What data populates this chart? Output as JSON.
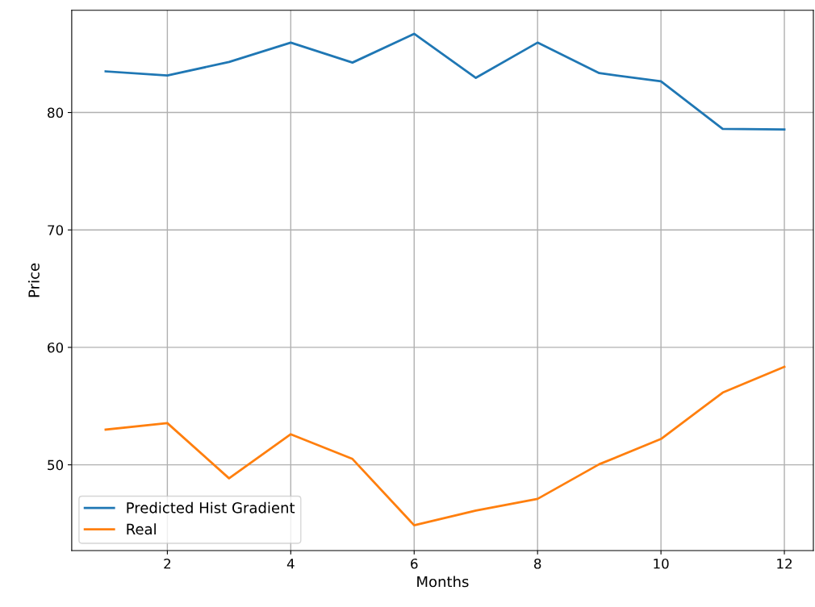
{
  "chart_data": {
    "type": "line",
    "xlabel": "Months",
    "ylabel": "Price",
    "x": [
      1,
      2,
      3,
      4,
      5,
      6,
      7,
      8,
      9,
      10,
      11,
      12
    ],
    "series": [
      {
        "name": "Predicted Hist Gradient",
        "color": "#1f77b4",
        "values": [
          83.5,
          83.15,
          84.3,
          85.95,
          84.25,
          86.7,
          82.95,
          85.95,
          83.35,
          82.65,
          78.6,
          78.55
        ]
      },
      {
        "name": "Real",
        "color": "#ff7f0e",
        "values": [
          53.0,
          53.55,
          48.85,
          52.6,
          50.5,
          44.85,
          46.1,
          47.1,
          50.05,
          52.2,
          56.15,
          58.35
        ]
      }
    ],
    "xlim": [
      0.45,
      12.47
    ],
    "ylim": [
      42.7,
      88.7
    ],
    "xticks": [
      2,
      4,
      6,
      8,
      10,
      12
    ],
    "yticks": [
      50,
      60,
      70,
      80
    ],
    "grid": true,
    "legend": "bottom left",
    "marker": "none",
    "line_style": "solid"
  }
}
